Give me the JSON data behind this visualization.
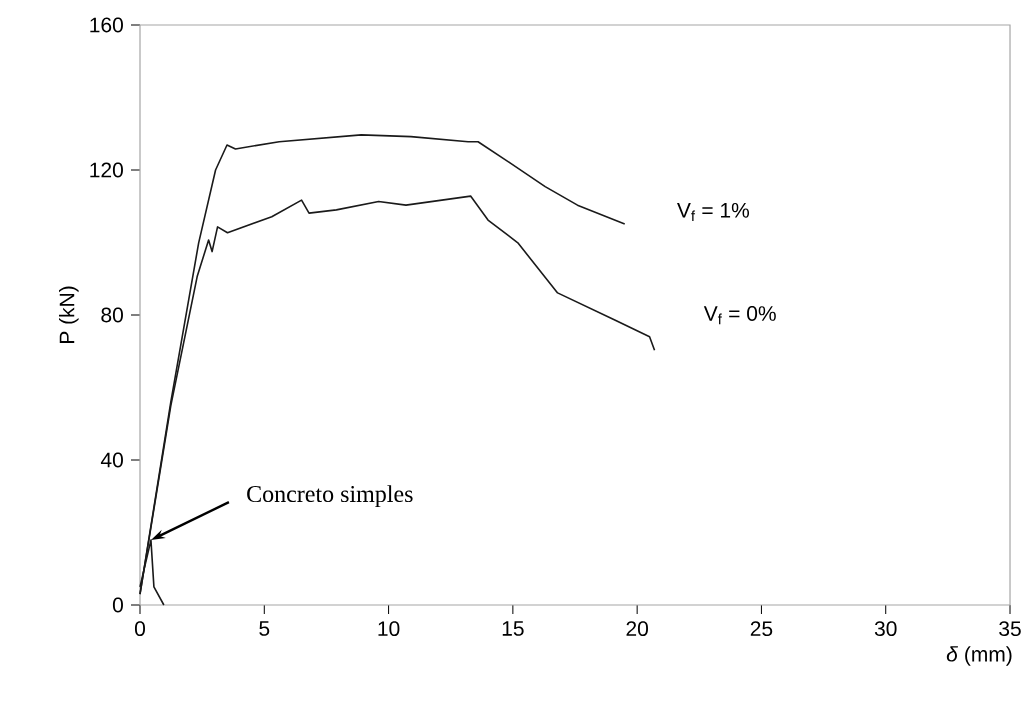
{
  "chart_data": {
    "type": "line",
    "xlabel": "*δ* (mm)",
    "ylabel": "P (kN)",
    "xlim": [
      0,
      35
    ],
    "ylim": [
      0,
      160
    ],
    "xticks": [
      0,
      5,
      10,
      15,
      20,
      25,
      30,
      35
    ],
    "yticks": [
      0,
      40,
      80,
      120,
      160
    ],
    "grid": false,
    "marker": "none",
    "line_style": "solid",
    "series": [
      {
        "name": "V$_{f}$  = 1%",
        "color": "#1a1a1a",
        "x": [
          0,
          1.24,
          2.36,
          3.04,
          3.5,
          3.84,
          5.6,
          8.9,
          10.9,
          13.2,
          13.6,
          14.9,
          16.3,
          17.6,
          19.5
        ],
        "values": [
          3,
          56,
          99.9,
          120,
          126.9,
          125.8,
          127.8,
          129.7,
          129.2,
          127.8,
          127.8,
          121.9,
          115.4,
          110.3,
          105.1
        ]
      },
      {
        "name": "V$_{f}$  = 0%",
        "color": "#1a1a1a",
        "x": [
          0,
          1.24,
          2.3,
          2.76,
          2.9,
          3.12,
          3.52,
          5.3,
          6.5,
          6.8,
          7.9,
          9.6,
          10.7,
          13.3,
          14.0,
          15.2,
          16.8,
          19.1,
          20.5,
          20.7
        ],
        "values": [
          3,
          55,
          90.6,
          100.7,
          97.5,
          104.3,
          102.7,
          107.1,
          111.7,
          108.1,
          109,
          111.3,
          110.3,
          112.8,
          106.2,
          99.9,
          86.1,
          78.6,
          74,
          70.3
        ]
      },
      {
        "color": "#1a1a1a",
        "x": [
          0,
          0.44,
          0.56,
          0.96
        ],
        "values": [
          5,
          17.9,
          5,
          0
        ]
      }
    ],
    "annotations": [
      {
        "text": "Concreto simples",
        "x": 0.44,
        "y": 17.9
      }
    ]
  }
}
